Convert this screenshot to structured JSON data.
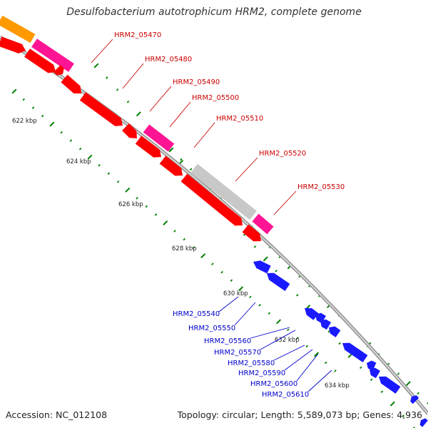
{
  "title": "Desulfobacterium autotrophicum HRM2, complete genome",
  "accession": "Accession: NC_012108",
  "summary": "Topology: circular; Length: 5,589,073 bp; Genes: 4,936",
  "colors": {
    "forward_gene": "#ff0000",
    "reverse_gene": "#1a1aff",
    "label_forward": "#cc0000",
    "label_reverse": "#0000cc",
    "orange_feature": "#ff9900",
    "pink_feature": "#ff1493",
    "grey_feature": "#c8c8c8",
    "backbone": "#999999",
    "tick": "#008000"
  },
  "scale_labels": [
    {
      "text": "622 kbp"
    },
    {
      "text": "624 kbp"
    },
    {
      "text": "626 kbp"
    },
    {
      "text": "628 kbp"
    },
    {
      "text": "630 kbp"
    },
    {
      "text": "632 kbp"
    },
    {
      "text": "634 kbp"
    }
  ],
  "forward_genes": [
    "HRM2_05470",
    "HRM2_05480",
    "HRM2_05490",
    "HRM2_05500",
    "HRM2_05510",
    "HRM2_05520",
    "HRM2_05530"
  ],
  "reverse_genes": [
    "HRM2_05540",
    "HRM2_05550",
    "HRM2_05560",
    "HRM2_05570",
    "HRM2_05580",
    "HRM2_05590",
    "HRM2_05600",
    "HRM2_05610"
  ]
}
